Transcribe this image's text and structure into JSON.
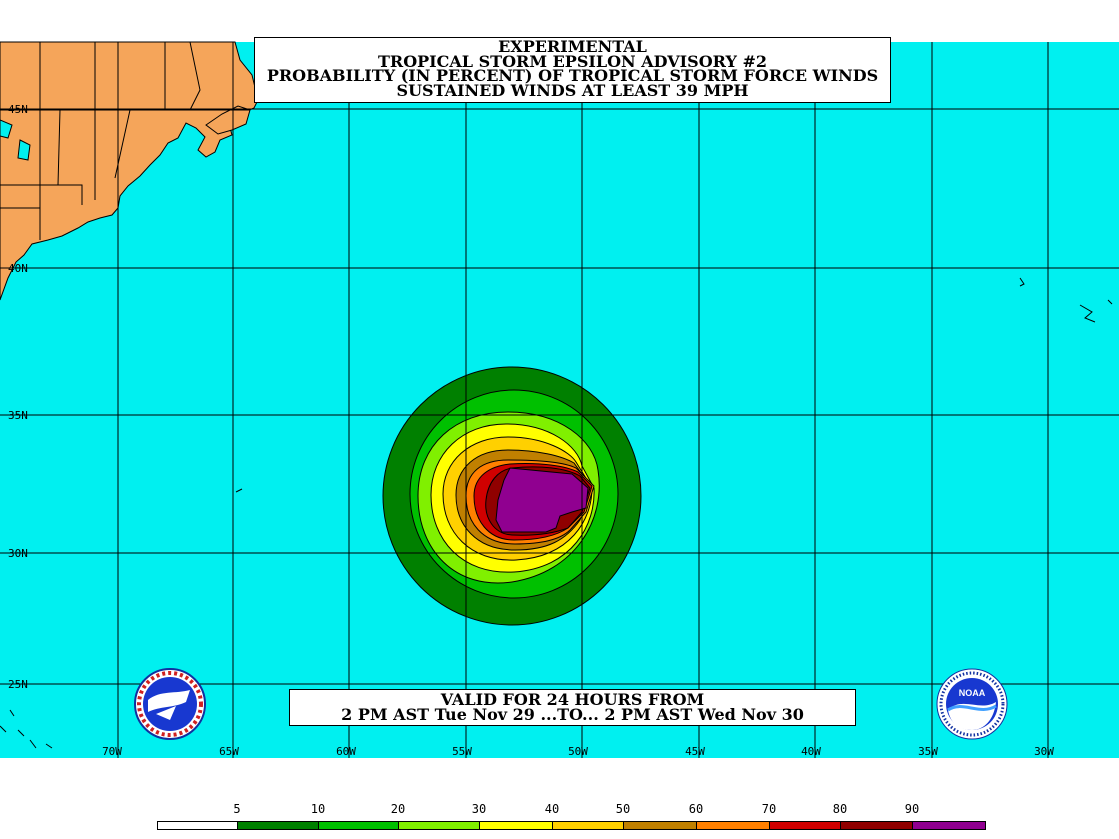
{
  "title": {
    "line1": "EXPERIMENTAL",
    "line2": "TROPICAL STORM EPSILON ADVISORY #2",
    "line3": "PROBABILITY (IN PERCENT) OF TROPICAL STORM FORCE WINDS",
    "line4": "SUSTAINED WINDS AT LEAST 39 MPH"
  },
  "valid": {
    "line1": "VALID FOR 24 HOURS FROM",
    "line2": "2 PM AST Tue Nov 29 ...TO... 2 PM AST Wed Nov 30"
  },
  "latitude_labels": [
    "45N",
    "40N",
    "35N",
    "30N",
    "25N"
  ],
  "longitude_labels": [
    "70W",
    "65W",
    "60W",
    "55W",
    "50W",
    "45W",
    "40W",
    "35W",
    "30W"
  ],
  "legend": {
    "labels": [
      "5",
      "10",
      "20",
      "30",
      "40",
      "50",
      "60",
      "70",
      "80",
      "90"
    ],
    "colors": [
      "#ffffff",
      "#008000",
      "#00c000",
      "#80f000",
      "#ffff00",
      "#ffd000",
      "#c08000",
      "#ff8000",
      "#d00000",
      "#900000",
      "#900090"
    ]
  },
  "colors": {
    "ocean": "#00f0f0",
    "land": "#f5a55a"
  },
  "logos": {
    "left": "nws-logo",
    "right": "noaa-logo",
    "right_text": "NOAA"
  }
}
